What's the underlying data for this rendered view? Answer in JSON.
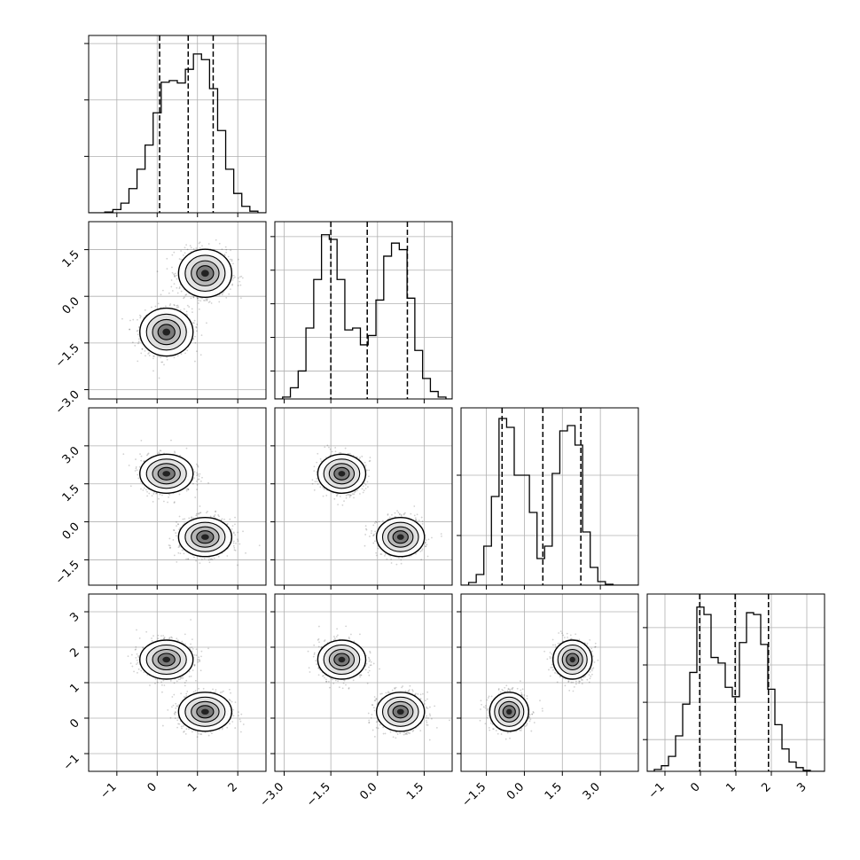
{
  "chart_data": {
    "type": "corner",
    "grid": true,
    "dims": [
      {
        "range": [
          -1.7,
          2.7
        ],
        "ticks": [
          {
            "v": -1,
            "t": "−1"
          },
          {
            "v": 0,
            "t": "0"
          },
          {
            "v": 1,
            "t": "1"
          },
          {
            "v": 2,
            "t": "2"
          }
        ],
        "hist_edges": [
          -1.7,
          -1.5,
          -1.3,
          -1.1,
          -0.9,
          -0.7,
          -0.5,
          -0.3,
          -0.1,
          0.1,
          0.3,
          0.5,
          0.7,
          0.9,
          1.1,
          1.3,
          1.5,
          1.7,
          1.9,
          2.1,
          2.3,
          2.5,
          2.7
        ],
        "hist_counts": [
          0.0,
          0.0,
          0.005,
          0.02,
          0.06,
          0.15,
          0.27,
          0.42,
          0.62,
          0.81,
          0.82,
          0.805,
          0.89,
          0.985,
          0.95,
          0.77,
          0.51,
          0.27,
          0.12,
          0.04,
          0.01,
          0.0
        ],
        "hist_ymax": 1.1,
        "hist_yticks": [
          0.35,
          0.7,
          1.05
        ],
        "quantiles": [
          0.06,
          0.77,
          1.39
        ],
        "modes": [
          [
            0.23,
            0.3,
            0.3
          ],
          [
            1.19,
            0.3,
            0.3
          ]
        ]
      },
      {
        "range": [
          -3.3,
          2.4
        ],
        "ticks": [
          {
            "v": -3.0,
            "t": "−3.0"
          },
          {
            "v": -1.5,
            "t": "−1.5"
          },
          {
            "v": 0.0,
            "t": "0.0"
          },
          {
            "v": 1.5,
            "t": "1.5"
          }
        ],
        "hist_edges": [
          -3.3,
          -3.05,
          -2.8,
          -2.55,
          -2.3,
          -2.05,
          -1.8,
          -1.55,
          -1.3,
          -1.05,
          -0.8,
          -0.55,
          -0.3,
          -0.05,
          0.2,
          0.45,
          0.7,
          0.95,
          1.2,
          1.45,
          1.7,
          1.95,
          2.2,
          2.4
        ],
        "hist_counts": [
          0.0,
          0.01,
          0.06,
          0.15,
          0.38,
          0.64,
          0.88,
          0.855,
          0.64,
          0.37,
          0.38,
          0.29,
          0.34,
          0.53,
          0.765,
          0.835,
          0.8,
          0.54,
          0.26,
          0.11,
          0.04,
          0.01,
          0.0
        ],
        "hist_ymax": 0.95,
        "hist_yticks": [
          0.15,
          0.33,
          0.51,
          0.69,
          0.87
        ],
        "quantiles": [
          -1.5,
          -0.33,
          0.96
        ],
        "modes": [
          [
            -1.15,
            0.35,
            0.35
          ],
          [
            0.74,
            0.35,
            0.35
          ]
        ]
      },
      {
        "range": [
          -2.5,
          4.5
        ],
        "ticks": [
          {
            "v": -1.5,
            "t": "−1.5"
          },
          {
            "v": 0.0,
            "t": "0.0"
          },
          {
            "v": 1.5,
            "t": "1.5"
          },
          {
            "v": 3.0,
            "t": "3.0"
          }
        ],
        "hist_edges": [
          -2.5,
          -2.2,
          -1.9,
          -1.6,
          -1.3,
          -1.0,
          -0.7,
          -0.4,
          -0.1,
          0.2,
          0.5,
          0.8,
          1.1,
          1.4,
          1.7,
          2.0,
          2.3,
          2.6,
          2.9,
          3.2,
          3.5,
          3.8,
          4.1,
          4.5
        ],
        "hist_counts": [
          0.0,
          0.015,
          0.06,
          0.22,
          0.5,
          0.94,
          0.89,
          0.62,
          0.62,
          0.41,
          0.15,
          0.22,
          0.63,
          0.87,
          0.9,
          0.79,
          0.3,
          0.1,
          0.02,
          0.005,
          0.0,
          0.0,
          0.0
        ],
        "hist_ymax": 1.0,
        "hist_yticks": [
          0.28,
          0.62
        ],
        "quantiles": [
          -0.88,
          0.73,
          2.23
        ],
        "modes": [
          [
            1.9,
            0.35,
            0.35
          ],
          [
            -0.6,
            0.35,
            0.35
          ]
        ]
      },
      {
        "range": [
          -1.5,
          3.5
        ],
        "ticks": [
          {
            "v": -1,
            "t": "−1"
          },
          {
            "v": 0,
            "t": "0"
          },
          {
            "v": 1,
            "t": "1"
          },
          {
            "v": 2,
            "t": "2"
          },
          {
            "v": 3,
            "t": "3"
          }
        ],
        "hist_edges": [
          -1.5,
          -1.3,
          -1.1,
          -0.9,
          -0.7,
          -0.5,
          -0.3,
          -0.1,
          0.1,
          0.3,
          0.5,
          0.7,
          0.9,
          1.1,
          1.3,
          1.5,
          1.7,
          1.9,
          2.1,
          2.3,
          2.5,
          2.7,
          2.9,
          3.1,
          3.3,
          3.5
        ],
        "hist_counts": [
          0.0,
          0.01,
          0.03,
          0.08,
          0.19,
          0.36,
          0.53,
          0.88,
          0.84,
          0.61,
          0.58,
          0.45,
          0.4,
          0.69,
          0.85,
          0.84,
          0.68,
          0.44,
          0.25,
          0.12,
          0.05,
          0.02,
          0.005,
          0.0,
          0.0
        ],
        "hist_ymax": 0.95,
        "hist_yticks": [
          0.17,
          0.37,
          0.57,
          0.77
        ],
        "quantiles": [
          -0.02,
          0.98,
          1.92
        ],
        "modes": [
          [
            1.65,
            0.25,
            0.25
          ],
          [
            0.18,
            0.25,
            0.25
          ]
        ]
      }
    ],
    "pair_rho": [
      [
        null,
        null,
        null,
        null
      ],
      [
        0.0,
        null,
        null,
        null
      ],
      [
        0.0,
        0.0,
        null,
        null
      ],
      [
        0.0,
        0.0,
        0.0,
        null
      ]
    ]
  }
}
